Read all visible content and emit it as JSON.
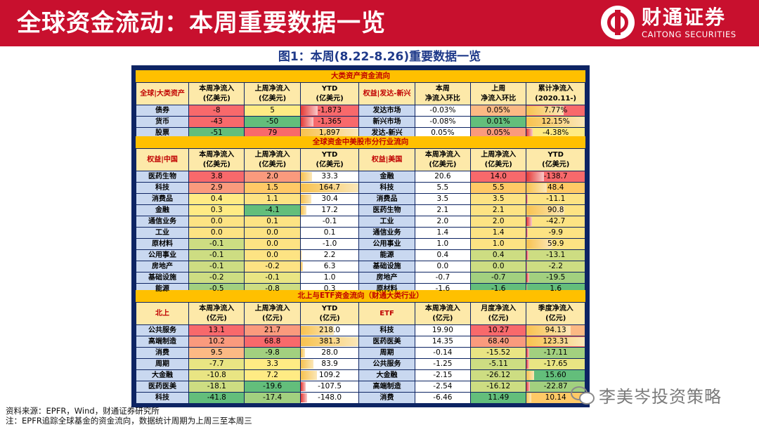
{
  "header": {
    "title": "全球资金流动：本周重要数据一览",
    "logo_cn": "财通证券",
    "logo_en": "CAITONG SECURITIES"
  },
  "figure_title": "图1：本周(8.22-8.26)重要数据一览",
  "sections": {
    "s1": "大类资产资金流向",
    "s2": "全球资金中美股市分行业流向",
    "s3": "北上与ETF资金流向（财通大类行业）"
  },
  "t1": {
    "headers": [
      "全球|大类资产",
      "本周净流入\n(亿美元)",
      "上周净流入\n(亿美元)",
      "YTD\n(亿美元)",
      "权益|发达-新兴",
      "本周\n净流入环比",
      "上周\n净流入环比",
      "累计净流入\n(2020.11-)"
    ],
    "rows": [
      {
        "name": "债券",
        "this": "-8",
        "last": "5",
        "ytd": "-1,873",
        "name2": "发达市场",
        "this2": "-0.03%",
        "last2": "0.05%",
        "cum": "7.77%"
      },
      {
        "name": "货币",
        "this": "-43",
        "last": "-50",
        "ytd": "-1,365",
        "name2": "新兴市场",
        "this2": "-0.08%",
        "last2": "0.01%",
        "cum": "12.15%"
      },
      {
        "name": "股票",
        "this": "-51",
        "last": "79",
        "ytd": "1,897",
        "name2": "发达-新兴",
        "this2": "0.05%",
        "last2": "0.05%",
        "cum": "-4.38%"
      }
    ]
  },
  "t2": {
    "headers": [
      "权益|中国",
      "本周净流入\n(亿美元)",
      "上周净流入\n(亿美元)",
      "YTD\n(亿美元)",
      "权益|美国",
      "本周净流入\n(亿美元)",
      "上周净流入\n(亿美元)",
      "YTD\n(亿美元)"
    ],
    "rows": [
      {
        "name": "医药生物",
        "this": "3.8",
        "last": "2.0",
        "ytd": "33.3",
        "name2": "金融",
        "this2": "20.6",
        "last2": "14.0",
        "ytd2": "-138.7"
      },
      {
        "name": "科技",
        "this": "2.9",
        "last": "1.5",
        "ytd": "164.7",
        "name2": "科技",
        "this2": "5.5",
        "last2": "5.5",
        "ytd2": "48.4"
      },
      {
        "name": "消费品",
        "this": "0.4",
        "last": "1.1",
        "ytd": "30.4",
        "name2": "消费品",
        "this2": "3.5",
        "last2": "3.5",
        "ytd2": "-11.1"
      },
      {
        "name": "金融",
        "this": "0.3",
        "last": "-4.1",
        "ytd": "17.2",
        "name2": "医药生物",
        "this2": "2.1",
        "last2": "2.1",
        "ytd2": "90.8"
      },
      {
        "name": "通信业务",
        "this": "0.0",
        "last": "0.1",
        "ytd": "-0.1",
        "name2": "工业",
        "this2": "2.0",
        "last2": "2.0",
        "ytd2": "-42.7"
      },
      {
        "name": "工业",
        "this": "0.0",
        "last": "0.0",
        "ytd": "0.1",
        "name2": "通信业务",
        "this2": "1.4",
        "last2": "1.4",
        "ytd2": "-9.9"
      },
      {
        "name": "原材料",
        "this": "-0.1",
        "last": "0.0",
        "ytd": "-1.0",
        "name2": "公用事业",
        "this2": "1.0",
        "last2": "1.0",
        "ytd2": "59.9"
      },
      {
        "name": "公用事业",
        "this": "-0.1",
        "last": "0.0",
        "ytd": "2.2",
        "name2": "能源",
        "this2": "0.4",
        "last2": "0.4",
        "ytd2": "-13.1"
      },
      {
        "name": "房地产",
        "this": "-0.1",
        "last": "-0.2",
        "ytd": "6.3",
        "name2": "基础设施",
        "this2": "0.0",
        "last2": "0.0",
        "ytd2": "-2.2"
      },
      {
        "name": "基础设施",
        "this": "-0.2",
        "last": "-0.1",
        "ytd": "1.0",
        "name2": "房地产",
        "this2": "-0.7",
        "last2": "-0.7",
        "ytd2": "-19.5"
      },
      {
        "name": "能源",
        "this": "-0.5",
        "last": "-0.8",
        "ytd": "0.3",
        "name2": "原材料",
        "this2": "-1.6",
        "last2": "-1.6",
        "ytd2": "1.6"
      }
    ]
  },
  "t3": {
    "headers": [
      "北上",
      "本周净流入\n(亿元)",
      "上周净流入\n(亿元)",
      "YTD\n(亿元)",
      "ETF",
      "本周净流入\n(亿元)",
      "月度净流入\n(亿元)",
      "季度净流入\n(亿元)"
    ],
    "rows": [
      {
        "name": "公共服务",
        "this": "13.1",
        "last": "21.7",
        "ytd": "218.0",
        "name2": "科技",
        "this2": "19.90",
        "last2": "10.27",
        "ytd2": "94.13"
      },
      {
        "name": "高端制造",
        "this": "10.2",
        "last": "68.8",
        "ytd": "381.3",
        "name2": "医药医美",
        "this2": "14.35",
        "last2": "68.40",
        "ytd2": "123.31"
      },
      {
        "name": "消费",
        "this": "9.5",
        "last": "-9.8",
        "ytd": "28.0",
        "name2": "周期",
        "this2": "-0.14",
        "last2": "-15.52",
        "ytd2": "-17.11"
      },
      {
        "name": "周期",
        "this": "-7.7",
        "last": "3.3",
        "ytd": "83.9",
        "name2": "公共服务",
        "this2": "-1.25",
        "last2": "-5.11",
        "ytd2": "-17.65"
      },
      {
        "name": "大金融",
        "this": "-10.8",
        "last": "7.2",
        "ytd": "109.2",
        "name2": "大金融",
        "this2": "-2.15",
        "last2": "-26.12",
        "ytd2": "15.60"
      },
      {
        "name": "医药医美",
        "this": "-18.1",
        "last": "-19.6",
        "ytd": "-107.5",
        "name2": "高端制造",
        "this2": "-2.54",
        "last2": "-16.12",
        "ytd2": "-22.87"
      },
      {
        "name": "科技",
        "this": "-41.8",
        "last": "-17.4",
        "ytd": "-148.0",
        "name2": "消费",
        "this2": "-6.46",
        "last2": "11.49",
        "ytd2": "10.14"
      }
    ]
  },
  "footer": {
    "source": "资料来源：EPFR，Wind，财通证券研究所",
    "note": "注：EPFR追踪全球基金的资金流向，数据统计周期为上周三至本周三",
    "watermark": "李美岑投资策略"
  }
}
